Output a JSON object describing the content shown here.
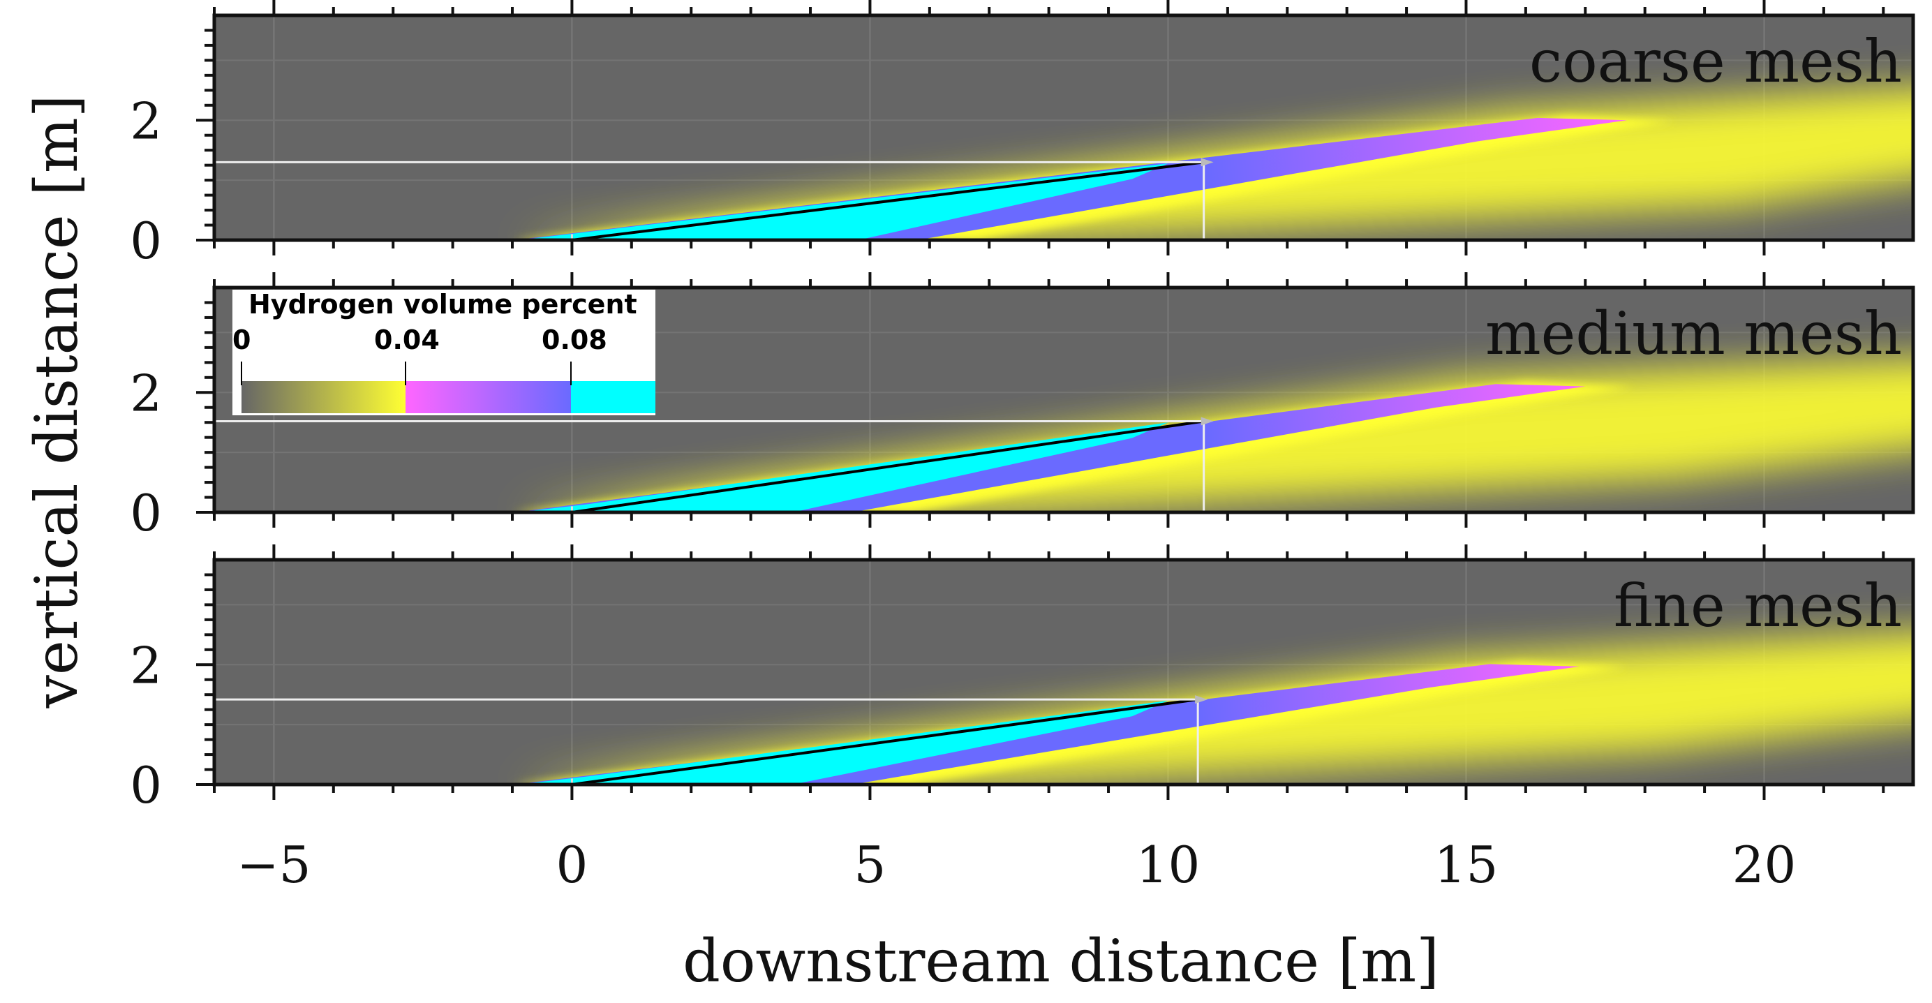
{
  "chart_data": {
    "type": "heatmap",
    "title": "",
    "xlabel": "downstream distance [m]",
    "ylabel": "vertical distance [m]",
    "xlim": [
      -6,
      22.5
    ],
    "ylim": [
      0,
      3.75
    ],
    "x_ticks": [
      -5,
      0,
      5,
      10,
      15,
      20
    ],
    "y_ticks": [
      0,
      2
    ],
    "x_tick_labels": [
      "−5",
      "0",
      "5",
      "10",
      "15",
      "20"
    ],
    "y_tick_labels": [
      "0",
      "2"
    ],
    "colorbar": {
      "title": "Hydrogen volume percent",
      "tick_values": [
        0,
        0.04,
        0.08
      ],
      "tick_labels": [
        "0",
        "0.04",
        "0.08"
      ],
      "segments": [
        {
          "from": 0,
          "to": 0.04,
          "colors": [
            "#666666",
            "#ffff33"
          ]
        },
        {
          "from": 0.04,
          "to": 0.08,
          "colors": [
            "#ff66ff",
            "#6a6aff"
          ]
        },
        {
          "from": 0.08,
          "to": 0.1,
          "colors": [
            "#00ffff",
            "#00ffff"
          ]
        }
      ]
    },
    "colors": {
      "background": "#666666",
      "low": "#ffff33",
      "mid_start": "#ff66ff",
      "mid_end": "#6a6aff",
      "high": "#00ffff"
    },
    "panels": [
      {
        "label": "coarse mesh",
        "jet_tip": [
          10.6,
          1.3
        ],
        "plume_tip": [
          17.7,
          2.0
        ],
        "cyan_end_x": 10.0,
        "cyan_bottom_end_x": 4.8,
        "lower_edge_end_x": 19.5
      },
      {
        "label": "medium mesh",
        "jet_tip": [
          10.6,
          1.52
        ],
        "plume_tip": [
          17.0,
          2.1
        ],
        "cyan_end_x": 10.0,
        "cyan_bottom_end_x": 3.7,
        "lower_edge_end_x": 18.5
      },
      {
        "label": "fine mesh",
        "jet_tip": [
          10.5,
          1.42
        ],
        "plume_tip": [
          16.9,
          1.97
        ],
        "cyan_end_x": 10.0,
        "cyan_bottom_end_x": 3.7,
        "lower_edge_end_x": 18.2
      }
    ]
  }
}
